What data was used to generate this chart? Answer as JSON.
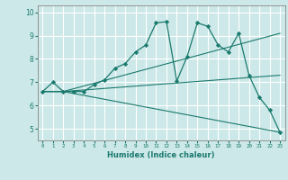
{
  "xlabel": "Humidex (Indice chaleur)",
  "ylabel": "",
  "bg_color": "#cde8e8",
  "grid_color": "#ffffff",
  "line_color": "#1a7a6e",
  "xlim": [
    -0.5,
    23.5
  ],
  "ylim": [
    4.5,
    10.3
  ],
  "xticks": [
    0,
    1,
    2,
    3,
    4,
    5,
    6,
    7,
    8,
    9,
    10,
    11,
    12,
    13,
    14,
    15,
    16,
    17,
    18,
    19,
    20,
    21,
    22,
    23
  ],
  "yticks": [
    5,
    6,
    7,
    8,
    9,
    10
  ],
  "series": [
    {
      "x": [
        0,
        1,
        2,
        3,
        4,
        5,
        6,
        7,
        8,
        9,
        10,
        11,
        12,
        13,
        14,
        15,
        16,
        17,
        18,
        19,
        20,
        21,
        22,
        23
      ],
      "y": [
        6.6,
        7.0,
        6.6,
        6.6,
        6.6,
        6.9,
        7.1,
        7.6,
        7.8,
        8.3,
        8.6,
        9.55,
        9.6,
        7.05,
        8.1,
        9.55,
        9.4,
        8.6,
        8.3,
        9.1,
        7.3,
        6.35,
        5.8,
        4.85
      ],
      "has_markers": true
    },
    {
      "x": [
        0,
        2,
        23
      ],
      "y": [
        6.6,
        6.6,
        4.85
      ],
      "has_markers": false
    },
    {
      "x": [
        0,
        2,
        23
      ],
      "y": [
        6.6,
        6.6,
        7.3
      ],
      "has_markers": false
    },
    {
      "x": [
        0,
        2,
        23
      ],
      "y": [
        6.6,
        6.6,
        9.1
      ],
      "has_markers": false
    }
  ]
}
